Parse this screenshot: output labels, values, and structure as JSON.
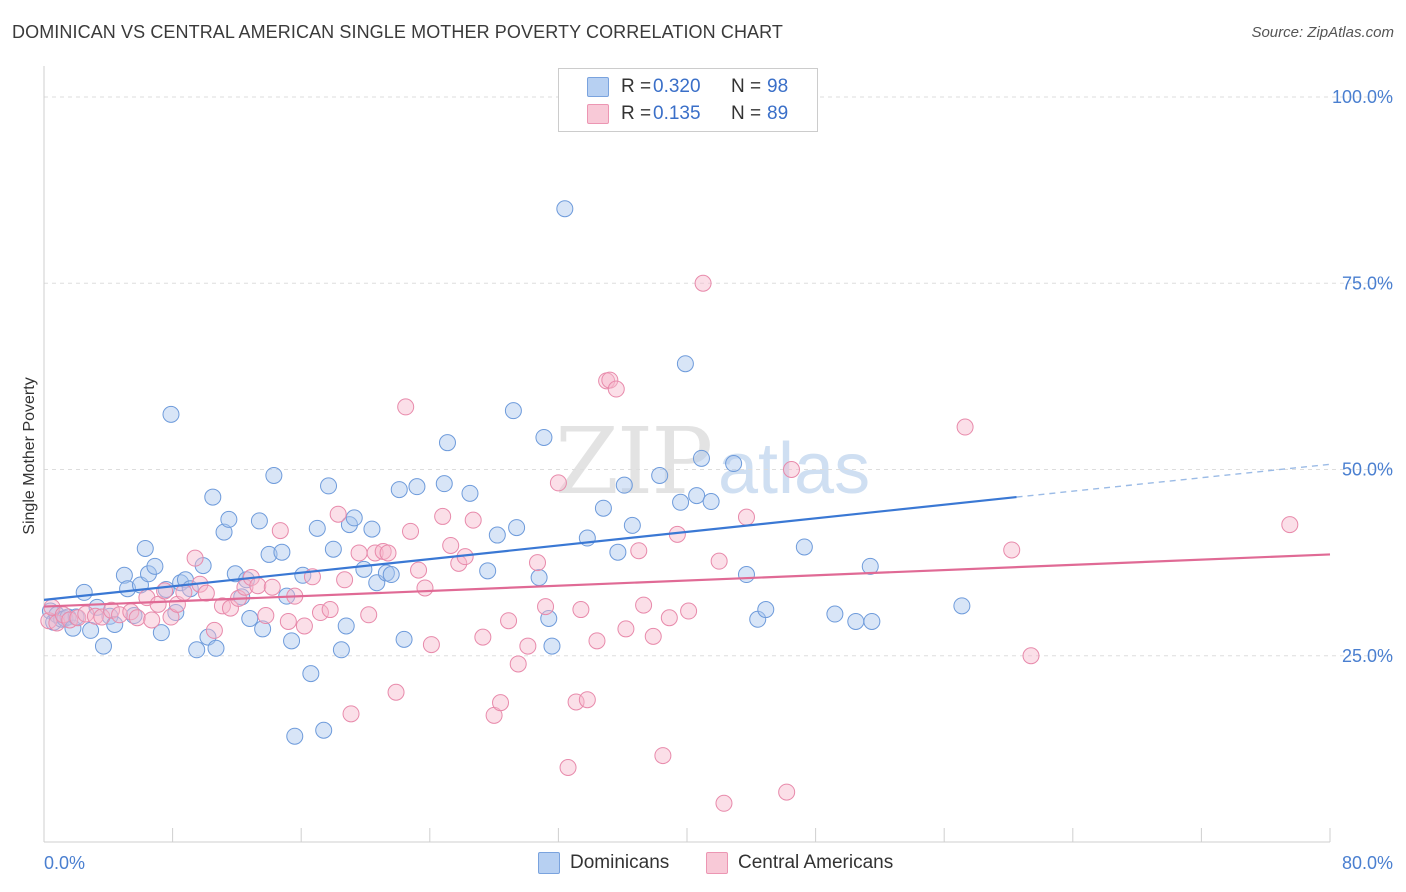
{
  "header": {
    "title": "DOMINICAN VS CENTRAL AMERICAN SINGLE MOTHER POVERTY CORRELATION CHART",
    "source": "Source: ZipAtlas.com"
  },
  "watermark": {
    "zip": "ZIP",
    "atlas": "atlas"
  },
  "legend": {
    "rows": [
      {
        "r_label": "R =",
        "r_value": "0.320",
        "n_label": "N =",
        "n_value": "98",
        "color": "#a9c6ee"
      },
      {
        "r_label": "R =",
        "r_value": "0.135",
        "n_label": "N =",
        "n_value": "89",
        "color": "#f6b8cb"
      }
    ]
  },
  "bottom_legend": {
    "items": [
      {
        "label": "Dominicans",
        "color": "#a9c6ee"
      },
      {
        "label": "Central Americans",
        "color": "#f6b8cb"
      }
    ]
  },
  "chart_data": {
    "type": "scatter",
    "title": "DOMINICAN VS CENTRAL AMERICAN SINGLE MOTHER POVERTY CORRELATION CHART",
    "xlabel": "",
    "ylabel": "Single Mother Poverty",
    "xlim": [
      0,
      80
    ],
    "ylim": [
      0,
      100
    ],
    "x_ticks": [
      "0.0%",
      "80.0%"
    ],
    "y_ticks": [
      "25.0%",
      "50.0%",
      "75.0%",
      "100.0%"
    ],
    "y_tick_values": [
      25,
      50,
      75,
      100
    ],
    "grid": "horizontal dashed",
    "legend_position": "top-center",
    "colors": {
      "Dominicans": "#4a86d8",
      "Central Americans": "#e8749c"
    },
    "series": [
      {
        "name": "Dominicans",
        "r": 0.32,
        "n": 98,
        "trend": {
          "x": [
            0,
            60.5
          ],
          "y": [
            32.5,
            46.3
          ],
          "dashed_to": [
            80,
            50.7
          ]
        },
        "points": [
          [
            0.4,
            31
          ],
          [
            0.6,
            29.5
          ],
          [
            0.8,
            30.5
          ],
          [
            1.1,
            29.9
          ],
          [
            1.3,
            30
          ],
          [
            1.5,
            30.2
          ],
          [
            1.8,
            28.7
          ],
          [
            2.0,
            30.2
          ],
          [
            2.5,
            33.5
          ],
          [
            2.9,
            28.4
          ],
          [
            3.3,
            31.5
          ],
          [
            3.7,
            26.3
          ],
          [
            4.1,
            30.3
          ],
          [
            4.4,
            29.2
          ],
          [
            5.0,
            35.8
          ],
          [
            5.2,
            34
          ],
          [
            5.6,
            30.4
          ],
          [
            6.0,
            34.5
          ],
          [
            6.3,
            39.4
          ],
          [
            6.5,
            36
          ],
          [
            6.9,
            37
          ],
          [
            7.3,
            28.1
          ],
          [
            7.6,
            33.9
          ],
          [
            7.9,
            57.4
          ],
          [
            8.2,
            30.8
          ],
          [
            8.5,
            34.8
          ],
          [
            8.8,
            35.2
          ],
          [
            9.1,
            34
          ],
          [
            9.5,
            25.8
          ],
          [
            9.9,
            37.1
          ],
          [
            10.2,
            27.5
          ],
          [
            10.5,
            46.3
          ],
          [
            10.7,
            26
          ],
          [
            11.2,
            41.6
          ],
          [
            11.5,
            43.3
          ],
          [
            11.9,
            36
          ],
          [
            12.3,
            32.9
          ],
          [
            12.6,
            35.2
          ],
          [
            12.8,
            30
          ],
          [
            13.4,
            43.1
          ],
          [
            13.6,
            28.6
          ],
          [
            14.0,
            38.6
          ],
          [
            14.3,
            49.2
          ],
          [
            14.8,
            38.9
          ],
          [
            15.1,
            33
          ],
          [
            15.4,
            27
          ],
          [
            15.6,
            14.2
          ],
          [
            16.1,
            35.8
          ],
          [
            16.6,
            22.6
          ],
          [
            17.0,
            42.1
          ],
          [
            17.4,
            15
          ],
          [
            17.7,
            47.8
          ],
          [
            18.0,
            39.3
          ],
          [
            18.5,
            25.8
          ],
          [
            18.8,
            29
          ],
          [
            19.0,
            42.6
          ],
          [
            19.3,
            43.5
          ],
          [
            19.9,
            36.6
          ],
          [
            20.4,
            42
          ],
          [
            20.7,
            34.8
          ],
          [
            21.3,
            36.1
          ],
          [
            21.6,
            35.9
          ],
          [
            22.1,
            47.3
          ],
          [
            22.4,
            27.2
          ],
          [
            23.2,
            47.7
          ],
          [
            24.9,
            48.1
          ],
          [
            25.1,
            53.6
          ],
          [
            26.5,
            46.8
          ],
          [
            27.6,
            36.4
          ],
          [
            28.2,
            41.2
          ],
          [
            29.2,
            57.9
          ],
          [
            29.4,
            42.2
          ],
          [
            30.8,
            35.5
          ],
          [
            31.1,
            54.3
          ],
          [
            31.4,
            30
          ],
          [
            31.6,
            26.3
          ],
          [
            32.4,
            85
          ],
          [
            33.8,
            40.8
          ],
          [
            34.8,
            44.8
          ],
          [
            35.7,
            38.9
          ],
          [
            36.1,
            47.9
          ],
          [
            36.6,
            42.5
          ],
          [
            38.3,
            49.2
          ],
          [
            39.6,
            45.6
          ],
          [
            39.9,
            64.2
          ],
          [
            40.6,
            46.5
          ],
          [
            40.9,
            51.5
          ],
          [
            41.5,
            45.7
          ],
          [
            42.9,
            50.8
          ],
          [
            43.7,
            35.9
          ],
          [
            44.4,
            29.9
          ],
          [
            44.9,
            31.2
          ],
          [
            47.3,
            39.6
          ],
          [
            49.2,
            30.6
          ],
          [
            50.5,
            29.6
          ],
          [
            51.4,
            37
          ],
          [
            51.5,
            29.6
          ],
          [
            57.1,
            31.7
          ]
        ]
      },
      {
        "name": "Central Americans",
        "r": 0.135,
        "n": 89,
        "trend": {
          "x": [
            0,
            80
          ],
          "y": [
            31.6,
            38.6
          ]
        },
        "points": [
          [
            0.3,
            29.7
          ],
          [
            0.5,
            31.5
          ],
          [
            0.8,
            29.4
          ],
          [
            1.2,
            30.5
          ],
          [
            1.6,
            29.8
          ],
          [
            2.1,
            30.1
          ],
          [
            2.6,
            30.6
          ],
          [
            3.2,
            30.3
          ],
          [
            3.6,
            30.2
          ],
          [
            4.2,
            31.1
          ],
          [
            4.7,
            30.5
          ],
          [
            5.4,
            30.9
          ],
          [
            5.8,
            30.1
          ],
          [
            6.4,
            32.8
          ],
          [
            6.7,
            29.8
          ],
          [
            7.1,
            31.9
          ],
          [
            7.5,
            33.7
          ],
          [
            7.9,
            30.2
          ],
          [
            8.3,
            31.9
          ],
          [
            8.7,
            33.5
          ],
          [
            9.4,
            38.1
          ],
          [
            9.7,
            34.6
          ],
          [
            10.1,
            33.4
          ],
          [
            10.6,
            28.4
          ],
          [
            11.1,
            31.7
          ],
          [
            11.6,
            31.4
          ],
          [
            12.1,
            32.7
          ],
          [
            12.5,
            34.2
          ],
          [
            12.9,
            35.5
          ],
          [
            13.3,
            34.4
          ],
          [
            13.8,
            30.4
          ],
          [
            14.2,
            34.2
          ],
          [
            14.7,
            41.8
          ],
          [
            15.2,
            29.6
          ],
          [
            15.6,
            33
          ],
          [
            16.2,
            29
          ],
          [
            16.7,
            35.6
          ],
          [
            17.2,
            30.8
          ],
          [
            17.8,
            31.2
          ],
          [
            18.3,
            44
          ],
          [
            18.7,
            35.2
          ],
          [
            19.1,
            17.2
          ],
          [
            19.6,
            38.8
          ],
          [
            20.2,
            30.5
          ],
          [
            20.6,
            38.8
          ],
          [
            21.1,
            39
          ],
          [
            21.4,
            38.8
          ],
          [
            21.9,
            20.1
          ],
          [
            22.5,
            58.4
          ],
          [
            22.8,
            41.7
          ],
          [
            23.3,
            36.5
          ],
          [
            23.7,
            34.1
          ],
          [
            24.1,
            26.5
          ],
          [
            24.8,
            43.7
          ],
          [
            25.3,
            39.8
          ],
          [
            25.8,
            37.4
          ],
          [
            26.2,
            38.3
          ],
          [
            26.7,
            43.2
          ],
          [
            27.3,
            27.5
          ],
          [
            28.0,
            17
          ],
          [
            28.4,
            18.7
          ],
          [
            28.9,
            29.7
          ],
          [
            29.5,
            23.9
          ],
          [
            30.1,
            26.3
          ],
          [
            30.7,
            37.5
          ],
          [
            31.2,
            31.6
          ],
          [
            32.0,
            48.2
          ],
          [
            32.6,
            10
          ],
          [
            33.1,
            18.8
          ],
          [
            33.4,
            31.2
          ],
          [
            33.8,
            19.1
          ],
          [
            34.4,
            27
          ],
          [
            35.0,
            61.9
          ],
          [
            35.2,
            62
          ],
          [
            35.6,
            60.8
          ],
          [
            36.2,
            28.6
          ],
          [
            37.0,
            39.1
          ],
          [
            37.3,
            31.8
          ],
          [
            37.9,
            27.6
          ],
          [
            38.5,
            11.6
          ],
          [
            38.9,
            30.1
          ],
          [
            39.4,
            41.3
          ],
          [
            40.1,
            31
          ],
          [
            41.0,
            75
          ],
          [
            42.0,
            37.7
          ],
          [
            42.3,
            5.2
          ],
          [
            43.7,
            43.6
          ],
          [
            46.2,
            6.7
          ],
          [
            46.5,
            50
          ]
        ],
        "extra_points": [
          [
            57.3,
            55.7
          ],
          [
            60.2,
            39.2
          ],
          [
            61.4,
            25
          ],
          [
            77.5,
            42.6
          ]
        ]
      }
    ]
  }
}
